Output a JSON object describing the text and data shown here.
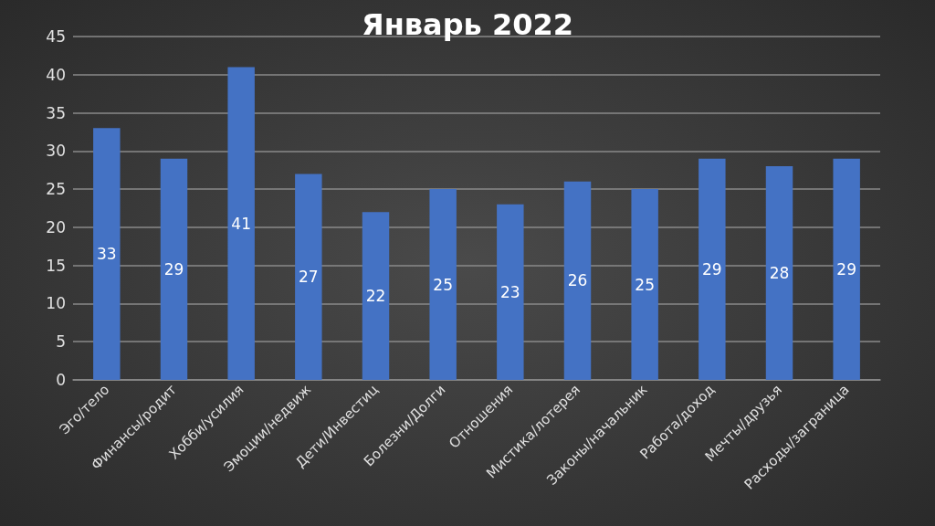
{
  "chart_data": {
    "type": "bar",
    "title": "Январь 2022",
    "categories": [
      "Эго/тело",
      "Финансы/родит",
      "Хобби/усилия",
      "Эмоции/недвиж",
      "Дети/Инвестиц",
      "Болезни/Долги",
      "Отношения",
      "Мистика/лотерея",
      "Законы/начальник",
      "Работа/доход",
      "Мечты/друзья",
      "Расходы/заграница"
    ],
    "values": [
      33,
      29,
      41,
      27,
      22,
      25,
      23,
      26,
      25,
      29,
      28,
      29
    ],
    "color": "#4472c4",
    "ylim": [
      0,
      45
    ],
    "yticks": [
      0,
      5,
      10,
      15,
      20,
      25,
      30,
      35,
      40,
      45
    ],
    "grid": true,
    "data_labels": true
  }
}
